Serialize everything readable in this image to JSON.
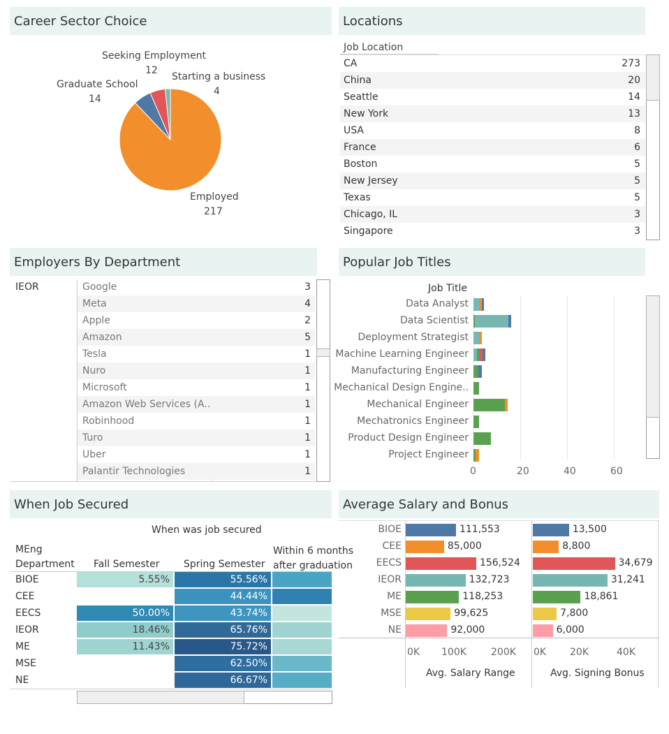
{
  "panels": {
    "career": "Career Sector Choice",
    "locations": "Locations",
    "employers": "Employers By Department",
    "titles": "Popular Job Titles",
    "when": "When Job Secured",
    "salary": "Average Salary and Bonus"
  },
  "career": {
    "slices": [
      {
        "label": "Employed",
        "value": "217",
        "color": "#f28e2b"
      },
      {
        "label": "Graduate School",
        "value": "14",
        "color": "#4e79a7"
      },
      {
        "label": "Seeking Employment",
        "value": "12",
        "color": "#e15759"
      },
      {
        "label": "Starting a business",
        "value": "4",
        "color": "#76b7b2"
      }
    ]
  },
  "locations": {
    "header": "Job Location",
    "rows": [
      {
        "name": "CA",
        "count": "273"
      },
      {
        "name": "China",
        "count": "20"
      },
      {
        "name": "Seattle",
        "count": "14"
      },
      {
        "name": "New York",
        "count": "13"
      },
      {
        "name": "USA",
        "count": "8"
      },
      {
        "name": "France",
        "count": "6"
      },
      {
        "name": "Boston",
        "count": "5"
      },
      {
        "name": "New Jersey",
        "count": "5"
      },
      {
        "name": "Texas",
        "count": "5"
      },
      {
        "name": "Chicago, IL",
        "count": "3"
      },
      {
        "name": "Singapore",
        "count": "3"
      }
    ]
  },
  "employers": {
    "department": "IEOR",
    "rows": [
      {
        "name": "Google",
        "count": "3"
      },
      {
        "name": "Meta",
        "count": "4"
      },
      {
        "name": "Apple",
        "count": "2"
      },
      {
        "name": "Amazon",
        "count": "5"
      },
      {
        "name": "Tesla",
        "count": "1"
      },
      {
        "name": "Nuro",
        "count": "1"
      },
      {
        "name": "Microsoft",
        "count": "1"
      },
      {
        "name": "Amazon Web Services (A..",
        "count": "1"
      },
      {
        "name": "Robinhood",
        "count": "1"
      },
      {
        "name": "Turo",
        "count": "1"
      },
      {
        "name": "Uber",
        "count": "1"
      },
      {
        "name": "Palantir Technologies",
        "count": "1"
      }
    ]
  },
  "titles": {
    "header": "Job Title",
    "ticks": [
      "0",
      "20",
      "40",
      "60"
    ],
    "rows": [
      {
        "name": "Data Analyst",
        "segs": [
          {
            "v": 2.5,
            "c": "#76b7b2"
          },
          {
            "v": 1,
            "c": "#f28e2b"
          },
          {
            "v": 1,
            "c": "#4e79a7"
          }
        ]
      },
      {
        "name": "Data Scientist",
        "segs": [
          {
            "v": 0.5,
            "c": "#59a14f"
          },
          {
            "v": 14.5,
            "c": "#76b7b2"
          },
          {
            "v": 1,
            "c": "#4e79a7"
          }
        ]
      },
      {
        "name": "Deployment Strategist",
        "segs": [
          {
            "v": 2.5,
            "c": "#76b7b2"
          },
          {
            "v": 1,
            "c": "#f28e2b"
          }
        ]
      },
      {
        "name": "Machine Learning Engineer",
        "segs": [
          {
            "v": 1.5,
            "c": "#76b7b2"
          },
          {
            "v": 1,
            "c": "#59a14f"
          },
          {
            "v": 1.5,
            "c": "#e15759"
          },
          {
            "v": 1,
            "c": "#4e79a7"
          }
        ]
      },
      {
        "name": "Manufacturing Engineer",
        "segs": [
          {
            "v": 2,
            "c": "#59a14f"
          },
          {
            "v": 1.5,
            "c": "#4e79a7"
          }
        ]
      },
      {
        "name": "Mechanical Design Engine..",
        "segs": [
          {
            "v": 2.5,
            "c": "#59a14f"
          }
        ]
      },
      {
        "name": "Mechanical Engineer",
        "segs": [
          {
            "v": 13.5,
            "c": "#59a14f"
          },
          {
            "v": 1,
            "c": "#f28e2b"
          }
        ]
      },
      {
        "name": "Mechatronics Engineer",
        "segs": [
          {
            "v": 2.5,
            "c": "#59a14f"
          }
        ]
      },
      {
        "name": "Product Design Engineer",
        "segs": [
          {
            "v": 7.5,
            "c": "#59a14f"
          }
        ]
      },
      {
        "name": "Project Engineer",
        "segs": [
          {
            "v": 1,
            "c": "#59a14f"
          },
          {
            "v": 1.5,
            "c": "#f28e2b"
          }
        ]
      }
    ]
  },
  "when": {
    "col_header": "When was job secured",
    "row_header_1": "MEng",
    "row_header_2": "Department",
    "cols": [
      "Fall Semester",
      "Spring Semester",
      "Within 6 months after graduation"
    ],
    "rows": [
      {
        "dept": "BIOE",
        "fall": "5.55%",
        "spring": "55.56%",
        "fall_c": "#b3e0d8",
        "spring_c": "#2b76a8",
        "within_c": "#4aa5c4"
      },
      {
        "dept": "CEE",
        "fall": "",
        "spring": "44.44%",
        "fall_c": "",
        "spring_c": "#3b92be",
        "within_c": "#2f81b2"
      },
      {
        "dept": "EECS",
        "fall": "50.00%",
        "spring": "43.74%",
        "fall_c": "#3089b5",
        "spring_c": "#3e96c0",
        "within_c": "#c2e6dd"
      },
      {
        "dept": "IEOR",
        "fall": "18.46%",
        "spring": "65.76%",
        "fall_c": "#8fcccc",
        "spring_c": "#2f6997",
        "within_c": "#9fd4d2"
      },
      {
        "dept": "ME",
        "fall": "11.43%",
        "spring": "75.72%",
        "fall_c": "#9fd4d2",
        "spring_c": "#28588a",
        "within_c": "#a7d8d4"
      },
      {
        "dept": "MSE",
        "fall": "",
        "spring": "62.50%",
        "fall_c": "",
        "spring_c": "#2f6e9e",
        "within_c": "#6ab8c9"
      },
      {
        "dept": "NE",
        "fall": "",
        "spring": "66.67%",
        "fall_c": "",
        "spring_c": "#2e6798",
        "within_c": "#55adc6"
      }
    ]
  },
  "salary": {
    "rows": [
      {
        "dept": "BIOE",
        "salary": 111553,
        "salary_label": "111,553",
        "bonus": 13500,
        "bonus_label": "13,500",
        "color": "#4e79a7"
      },
      {
        "dept": "CEE",
        "salary": 85000,
        "salary_label": "85,000",
        "bonus": 8800,
        "bonus_label": "8,800",
        "color": "#f28e2b"
      },
      {
        "dept": "EECS",
        "salary": 156524,
        "salary_label": "156,524",
        "bonus": 34679,
        "bonus_label": "34,679",
        "color": "#e15759"
      },
      {
        "dept": "IEOR",
        "salary": 132723,
        "salary_label": "132,723",
        "bonus": 31241,
        "bonus_label": "31,241",
        "color": "#76b7b2"
      },
      {
        "dept": "ME",
        "salary": 118253,
        "salary_label": "118,253",
        "bonus": 18861,
        "bonus_label": "18,861",
        "color": "#59a14f"
      },
      {
        "dept": "MSE",
        "salary": 99625,
        "salary_label": "99,625",
        "bonus": 7800,
        "bonus_label": "7,800",
        "color": "#edc948"
      },
      {
        "dept": "NE",
        "salary": 92000,
        "salary_label": "92,000",
        "bonus": 6000,
        "bonus_label": "6,000",
        "color": "#ff9da7"
      }
    ],
    "salary_ticks": [
      "0K",
      "100K",
      "200K"
    ],
    "bonus_ticks": [
      "0K",
      "20K",
      "40K"
    ],
    "salary_axis": "Avg. Salary Range",
    "bonus_axis": "Avg. Signing Bonus"
  },
  "chart_data": [
    {
      "type": "pie",
      "title": "Career Sector Choice",
      "categories": [
        "Employed",
        "Graduate School",
        "Seeking Employment",
        "Starting a business"
      ],
      "values": [
        217,
        14,
        12,
        4
      ]
    },
    {
      "type": "bar",
      "title": "Popular Job Titles",
      "categories": [
        "Data Analyst",
        "Data Scientist",
        "Deployment Strategist",
        "Machine Learning Engineer",
        "Manufacturing Engineer",
        "Mechanical Design Engine..",
        "Mechanical Engineer",
        "Mechatronics Engineer",
        "Product Design Engineer",
        "Project Engineer"
      ],
      "values": [
        4.5,
        16,
        3.5,
        5,
        3.5,
        2.5,
        14.5,
        2.5,
        7.5,
        2.5
      ],
      "ylabel": "Job Title",
      "xlim": [
        0,
        70
      ]
    },
    {
      "type": "bar",
      "title": "Average Salary and Bonus",
      "categories": [
        "BIOE",
        "CEE",
        "EECS",
        "IEOR",
        "ME",
        "MSE",
        "NE"
      ],
      "series": [
        {
          "name": "Avg. Salary Range",
          "values": [
            111553,
            85000,
            156524,
            132723,
            118253,
            99625,
            92000
          ]
        },
        {
          "name": "Avg. Signing Bonus",
          "values": [
            13500,
            8800,
            34679,
            31241,
            18861,
            7800,
            6000
          ]
        }
      ]
    }
  ]
}
